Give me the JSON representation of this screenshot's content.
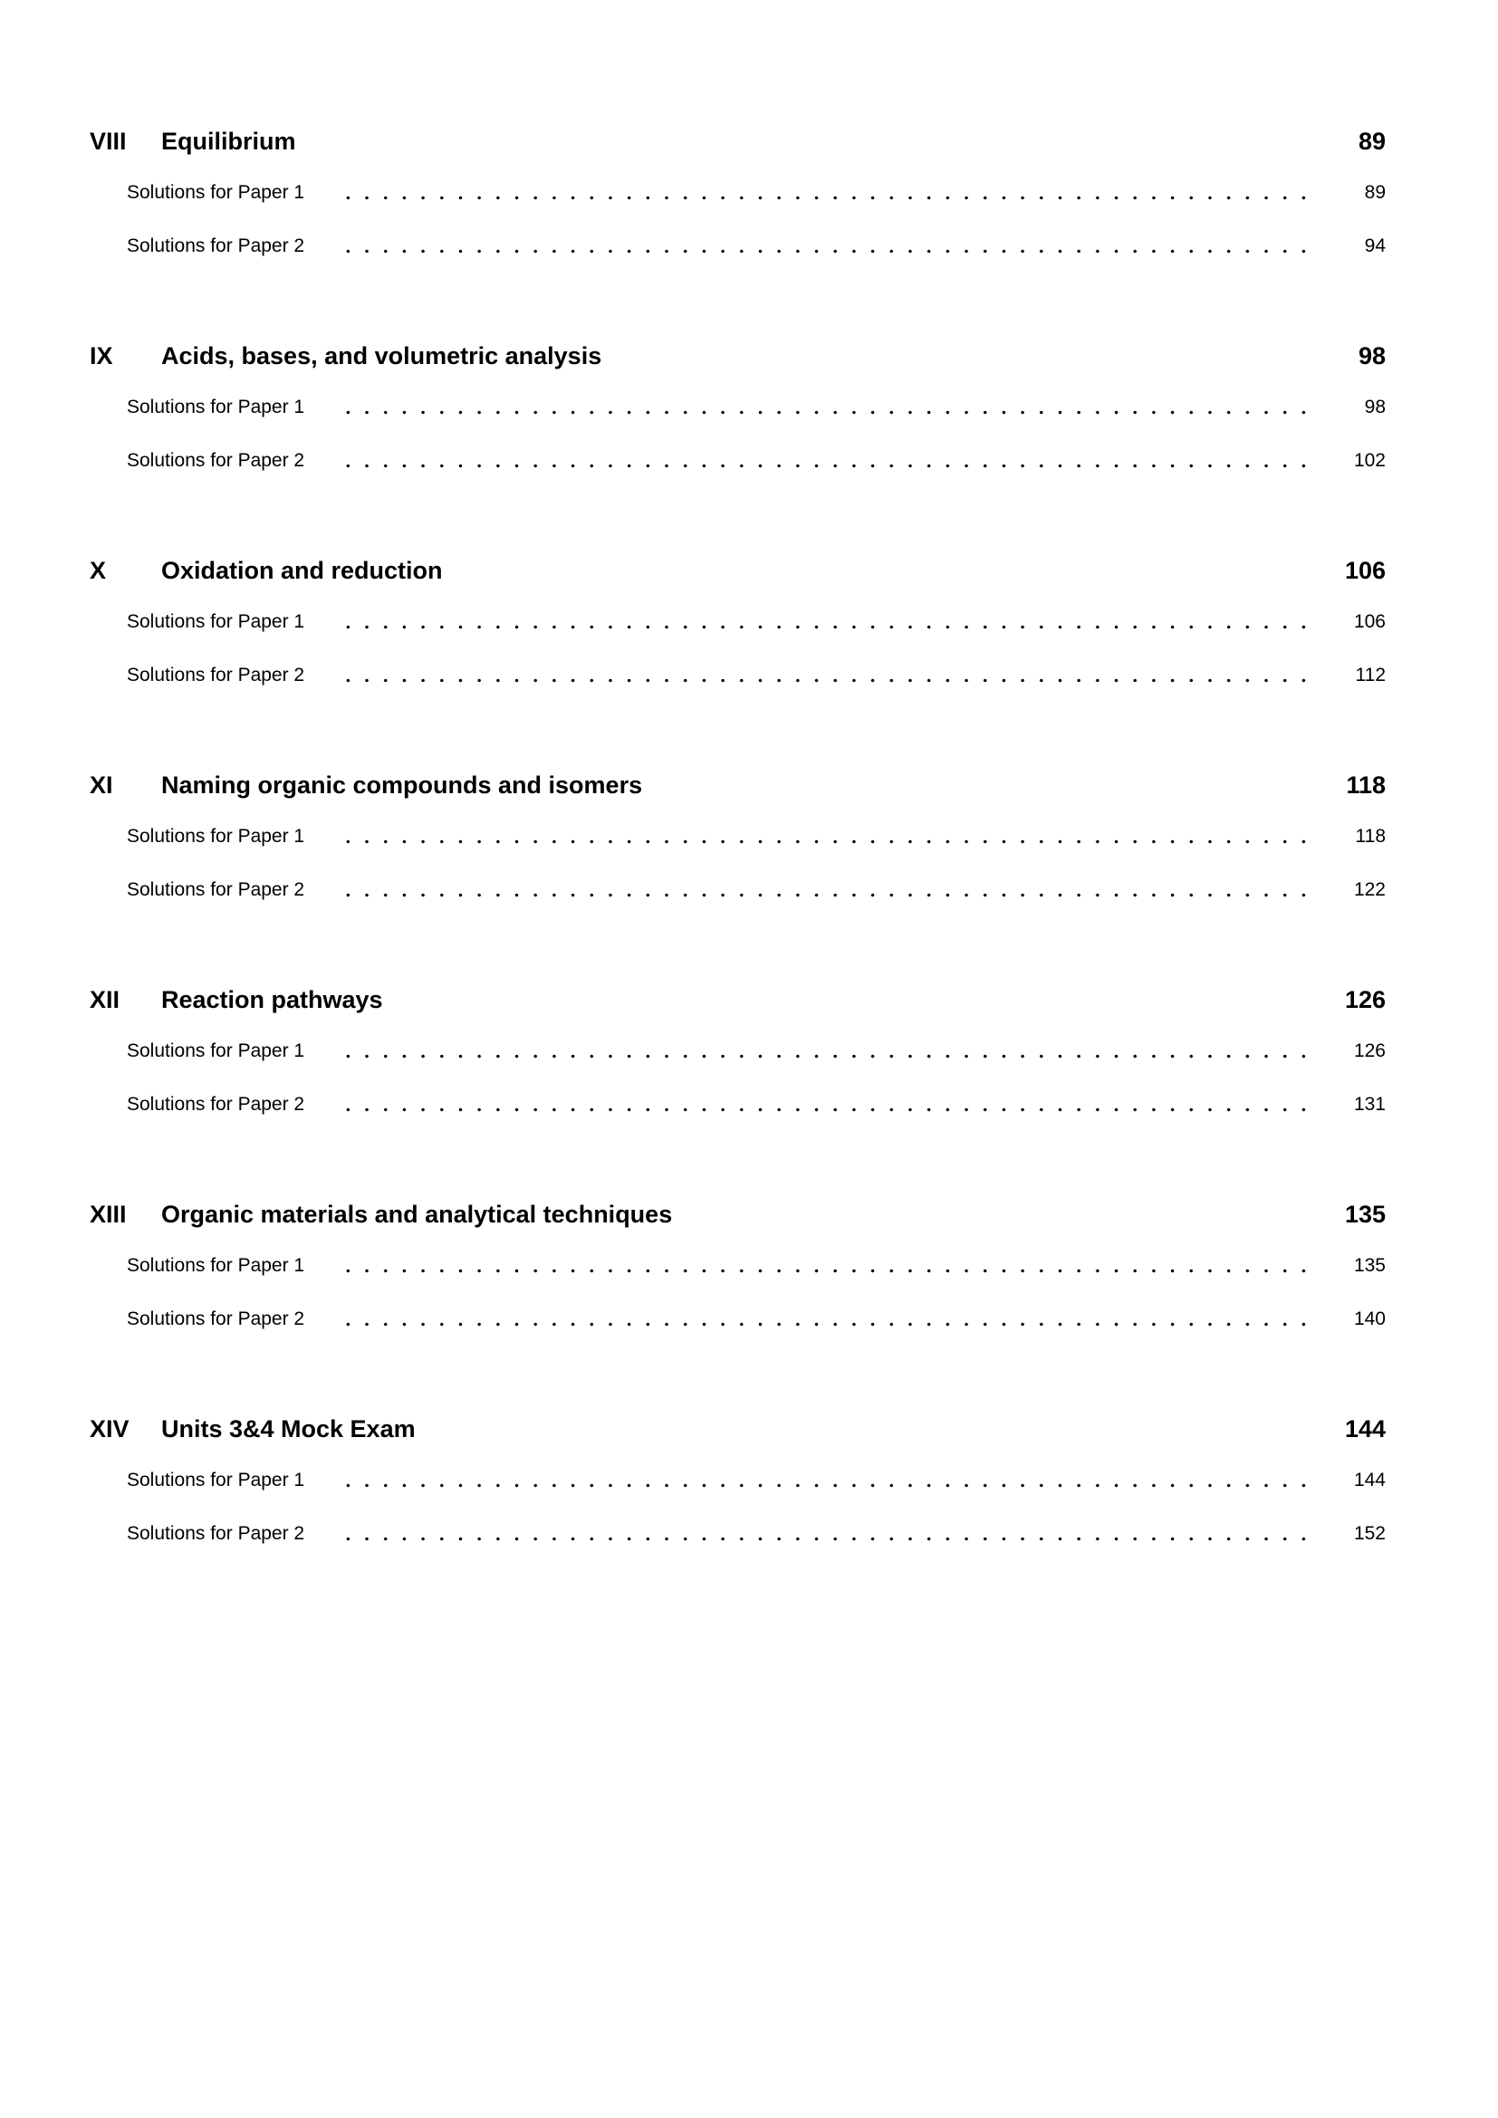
{
  "page": {
    "background_color": "#ffffff",
    "text_color": "#000000"
  },
  "toc": {
    "sections": [
      {
        "number": "VIII",
        "title": "Equilibrium",
        "page": "89",
        "entries": [
          {
            "label": "Solutions for Paper 1",
            "page": "89"
          },
          {
            "label": "Solutions for Paper 2",
            "page": "94"
          }
        ]
      },
      {
        "number": "IX",
        "title": "Acids, bases, and volumetric analysis",
        "page": "98",
        "entries": [
          {
            "label": "Solutions for Paper 1",
            "page": "98"
          },
          {
            "label": "Solutions for Paper 2",
            "page": "102"
          }
        ]
      },
      {
        "number": "X",
        "title": "Oxidation and reduction",
        "page": "106",
        "entries": [
          {
            "label": "Solutions for Paper 1",
            "page": "106"
          },
          {
            "label": "Solutions for Paper 2",
            "page": "112"
          }
        ]
      },
      {
        "number": "XI",
        "title": "Naming organic compounds and isomers",
        "page": "118",
        "entries": [
          {
            "label": "Solutions for Paper 1",
            "page": "118"
          },
          {
            "label": "Solutions for Paper 2",
            "page": "122"
          }
        ]
      },
      {
        "number": "XII",
        "title": "Reaction pathways",
        "page": "126",
        "entries": [
          {
            "label": "Solutions for Paper 1",
            "page": "126"
          },
          {
            "label": "Solutions for Paper 2",
            "page": "131"
          }
        ]
      },
      {
        "number": "XIII",
        "title": "Organic materials and analytical techniques",
        "page": "135",
        "entries": [
          {
            "label": "Solutions for Paper 1",
            "page": "135"
          },
          {
            "label": "Solutions for Paper 2",
            "page": "140"
          }
        ]
      },
      {
        "number": "XIV",
        "title": "Units 3&4 Mock Exam",
        "page": "144",
        "entries": [
          {
            "label": "Solutions for Paper 1",
            "page": "144"
          },
          {
            "label": "Solutions for Paper 2",
            "page": "152"
          }
        ]
      }
    ]
  }
}
